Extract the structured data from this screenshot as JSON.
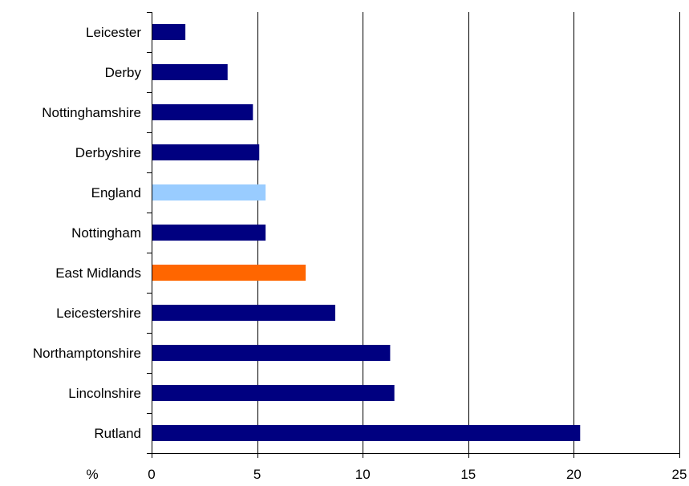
{
  "chart_data": {
    "type": "bar",
    "orientation": "horizontal",
    "title": "",
    "xlabel": "%",
    "ylabel": "",
    "xlim": [
      0,
      25
    ],
    "xticks": [
      "0",
      "5",
      "10",
      "15",
      "20",
      "25"
    ],
    "grid": "vertical",
    "legend": "none",
    "categories": [
      "Leicester",
      "Derby",
      "Nottinghamshire",
      "Derbyshire",
      "England",
      "Nottingham",
      "East Midlands",
      "Leicestershire",
      "Northamptonshire",
      "Lincolnshire",
      "Rutland"
    ],
    "values": [
      1.6,
      3.6,
      4.8,
      5.1,
      5.4,
      5.4,
      7.3,
      8.7,
      11.3,
      11.5,
      20.3
    ],
    "colors": [
      "#000080",
      "#000080",
      "#000080",
      "#000080",
      "#99ccff",
      "#000080",
      "#ff6600",
      "#000080",
      "#000080",
      "#000080",
      "#000080"
    ]
  }
}
